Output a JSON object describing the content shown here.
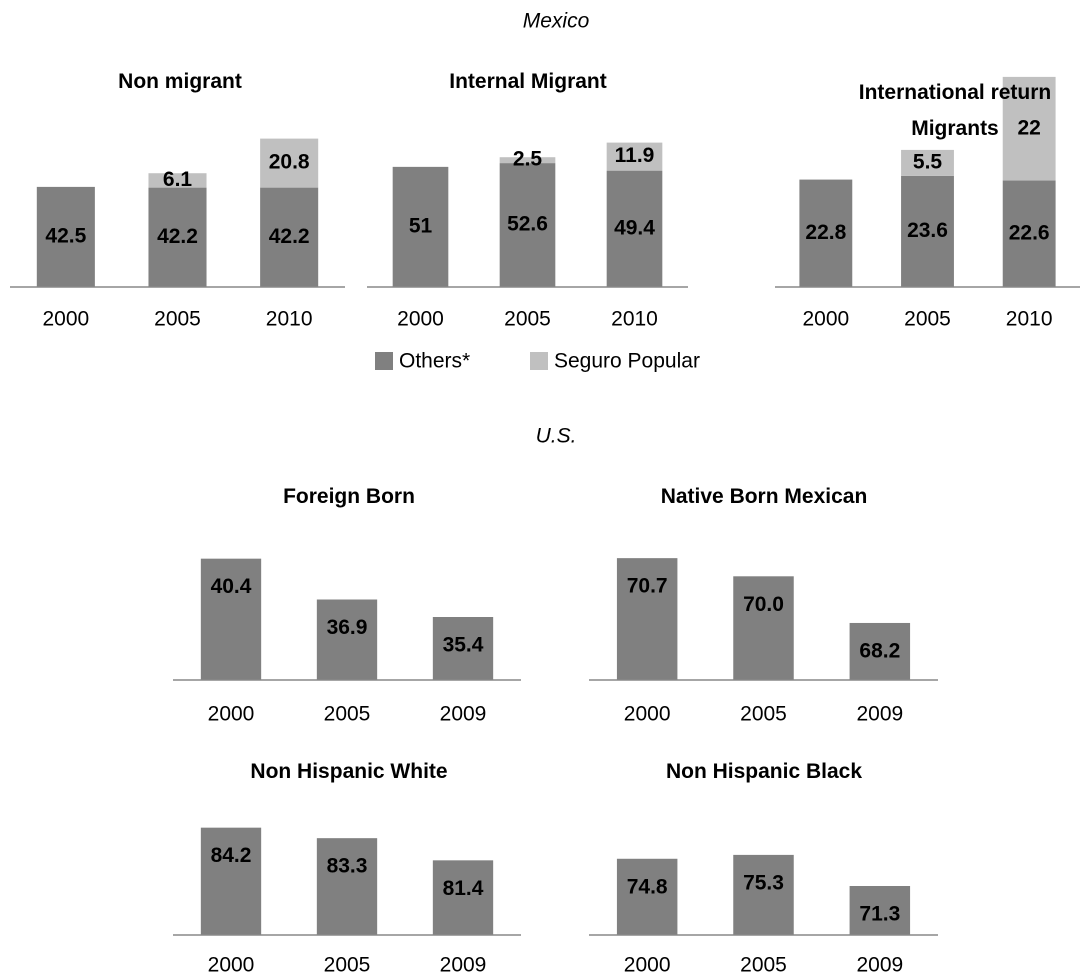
{
  "mexico_title": "Mexico",
  "us_title": "U.S.",
  "chart_data": [
    {
      "type": "stacked_bar",
      "title": "Non migrant",
      "categories": [
        "2000",
        "2005",
        "2010"
      ],
      "series": [
        {
          "name": "Others*",
          "color": "#808080",
          "values": [
            42.5,
            42.2,
            42.2
          ]
        },
        {
          "name": "Seguro Popular",
          "color": "#c0c0c0",
          "values": [
            null,
            6.1,
            20.8
          ]
        }
      ],
      "ylim": [
        0,
        90
      ]
    },
    {
      "type": "stacked_bar",
      "title": "Internal Migrant",
      "categories": [
        "2000",
        "2005",
        "2010"
      ],
      "series": [
        {
          "name": "Others*",
          "color": "#808080",
          "values": [
            51,
            52.6,
            49.4
          ]
        },
        {
          "name": "Seguro Popular",
          "color": "#c0c0c0",
          "values": [
            null,
            2.5,
            11.9
          ]
        }
      ],
      "ylim": [
        0,
        90
      ]
    },
    {
      "type": "stacked_bar",
      "title": "International return Migrants",
      "categories": [
        "2000",
        "2005",
        "2010"
      ],
      "series": [
        {
          "name": "Others*",
          "color": "#808080",
          "values": [
            22.8,
            23.6,
            22.6
          ]
        },
        {
          "name": "Seguro Popular",
          "color": "#c0c0c0",
          "values": [
            null,
            5.5,
            22
          ]
        }
      ],
      "ylim": [
        0,
        45
      ]
    },
    {
      "type": "bar",
      "title": "Foreign Born",
      "categories": [
        "2000",
        "2005",
        "2009"
      ],
      "values": [
        40.4,
        36.9,
        35.4
      ],
      "color": "#808080",
      "ylim": [
        30,
        42
      ]
    },
    {
      "type": "bar",
      "title": "Native Born Mexican",
      "categories": [
        "2000",
        "2005",
        "2009"
      ],
      "values": [
        70.7,
        70,
        68.2
      ],
      "value_labels": [
        "70.7",
        "70.0",
        "68.2"
      ],
      "color": "#808080",
      "ylim": [
        66,
        71.4
      ]
    },
    {
      "type": "bar",
      "title": "Non Hispanic White",
      "categories": [
        "2000",
        "2005",
        "2009"
      ],
      "values": [
        84.2,
        83.3,
        81.4
      ],
      "color": "#808080",
      "ylim": [
        75,
        87
      ]
    },
    {
      "type": "bar",
      "title": "Non Hispanic Black",
      "categories": [
        "2000",
        "2005",
        "2009"
      ],
      "values": [
        74.8,
        75.3,
        71.3
      ],
      "color": "#808080",
      "ylim": [
        65,
        83
      ]
    }
  ]
}
